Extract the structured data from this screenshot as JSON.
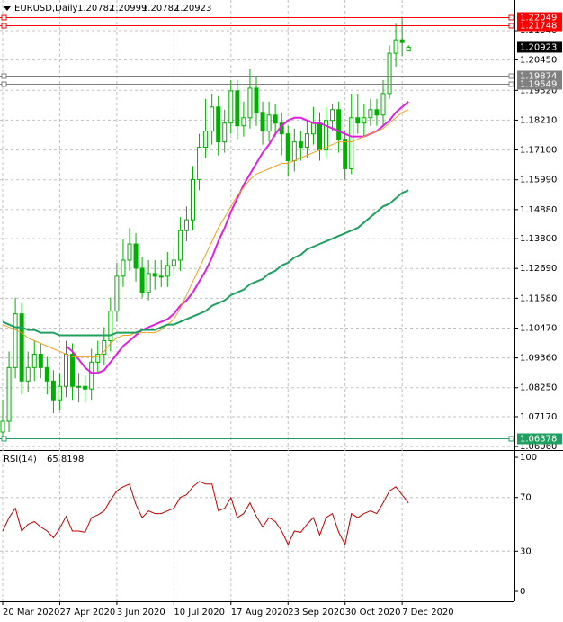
{
  "chart_data": {
    "type": "candlestick",
    "title": "EURUSD,Daily",
    "categories": [
      "20 Mar 2020",
      null,
      null,
      null,
      null,
      null,
      null,
      null,
      null,
      "27 Apr 2020",
      null,
      null,
      null,
      null,
      null,
      null,
      null,
      null,
      "3 Jun 2020",
      null,
      null,
      null,
      null,
      null,
      null,
      null,
      null,
      "10 Jul 2020",
      null,
      null,
      null,
      null,
      null,
      null,
      null,
      null,
      "17 Aug 2020",
      null,
      null,
      null,
      null,
      null,
      null,
      null,
      null,
      "23 Sep 2020",
      null,
      null,
      null,
      null,
      null,
      null,
      null,
      null,
      "30 Oct 2020",
      null,
      null,
      null,
      null,
      null,
      null,
      null,
      null,
      "7 Dec 2020",
      null
    ],
    "open": [
      1.066,
      1.07,
      1.09,
      1.11,
      1.085,
      1.09,
      1.095,
      1.09,
      1.085,
      1.078,
      1.083,
      1.095,
      1.083,
      1.083,
      1.082,
      1.092,
      1.095,
      1.1,
      1.111,
      1.124,
      1.13,
      1.136,
      1.127,
      1.118,
      1.125,
      1.124,
      1.124,
      1.128,
      1.13,
      1.141,
      1.145,
      1.16,
      1.172,
      1.178,
      1.187,
      1.174,
      1.181,
      1.193,
      1.18,
      1.183,
      1.194,
      1.185,
      1.178,
      1.184,
      1.181,
      1.177,
      1.167,
      1.174,
      1.172,
      1.177,
      1.181,
      1.171,
      1.182,
      1.186,
      1.175,
      1.164,
      1.183,
      1.181,
      1.183,
      1.186,
      1.184,
      1.192,
      1.207,
      1.212,
      1.20782
    ],
    "high": [
      1.078,
      1.096,
      1.116,
      1.114,
      1.096,
      1.1,
      1.099,
      1.094,
      1.089,
      1.088,
      1.1,
      1.099,
      1.088,
      1.087,
      1.097,
      1.1,
      1.105,
      1.116,
      1.129,
      1.138,
      1.142,
      1.14,
      1.131,
      1.13,
      1.13,
      1.13,
      1.133,
      1.135,
      1.146,
      1.15,
      1.165,
      1.177,
      1.19,
      1.192,
      1.191,
      1.186,
      1.197,
      1.197,
      1.189,
      1.201,
      1.198,
      1.189,
      1.189,
      1.188,
      1.185,
      1.18,
      1.179,
      1.178,
      1.182,
      1.187,
      1.185,
      1.187,
      1.188,
      1.189,
      1.178,
      1.192,
      1.192,
      1.188,
      1.19,
      1.19,
      1.197,
      1.21,
      1.218,
      1.22,
      1.20999
    ],
    "low": [
      1.063,
      1.066,
      1.086,
      1.08,
      1.081,
      1.085,
      1.086,
      1.08,
      1.073,
      1.074,
      1.079,
      1.078,
      1.077,
      1.077,
      1.078,
      1.088,
      1.091,
      1.096,
      1.107,
      1.12,
      1.126,
      1.122,
      1.116,
      1.115,
      1.119,
      1.12,
      1.12,
      1.124,
      1.126,
      1.137,
      1.141,
      1.156,
      1.168,
      1.173,
      1.169,
      1.17,
      1.177,
      1.175,
      1.176,
      1.179,
      1.18,
      1.173,
      1.174,
      1.176,
      1.169,
      1.161,
      1.163,
      1.167,
      1.168,
      1.173,
      1.167,
      1.168,
      1.178,
      1.17,
      1.16,
      1.162,
      1.177,
      1.176,
      1.18,
      1.18,
      1.18,
      1.19,
      1.202,
      1.206,
      1.20782
    ],
    "close": [
      1.07,
      1.09,
      1.11,
      1.085,
      1.09,
      1.095,
      1.09,
      1.085,
      1.078,
      1.083,
      1.095,
      1.083,
      1.083,
      1.082,
      1.092,
      1.095,
      1.1,
      1.111,
      1.124,
      1.13,
      1.136,
      1.127,
      1.118,
      1.125,
      1.124,
      1.124,
      1.128,
      1.13,
      1.141,
      1.145,
      1.16,
      1.172,
      1.178,
      1.187,
      1.174,
      1.181,
      1.193,
      1.18,
      1.183,
      1.194,
      1.185,
      1.178,
      1.184,
      1.181,
      1.177,
      1.167,
      1.174,
      1.172,
      1.177,
      1.181,
      1.171,
      1.182,
      1.186,
      1.175,
      1.164,
      1.183,
      1.181,
      1.183,
      1.186,
      1.184,
      1.192,
      1.207,
      1.212,
      1.211,
      1.20923
    ],
    "up_color": "#00b000",
    "down_color": "#00b000",
    "ylim": [
      1.0593,
      1.2268
    ],
    "yticks": [
      {
        "value": 1.2154,
        "label": "1.21540"
      },
      {
        "value": 1.2045,
        "label": "1.20450"
      },
      {
        "value": 1.1932,
        "label": "1.19320"
      },
      {
        "value": 1.1821,
        "label": "1.18210"
      },
      {
        "value": 1.171,
        "label": "1.17100"
      },
      {
        "value": 1.1599,
        "label": "1.15990"
      },
      {
        "value": 1.1488,
        "label": "1.14880"
      },
      {
        "value": 1.138,
        "label": "1.13800"
      },
      {
        "value": 1.1269,
        "label": "1.12690"
      },
      {
        "value": 1.1158,
        "label": "1.11580"
      },
      {
        "value": 1.1047,
        "label": "1.10470"
      },
      {
        "value": 1.0936,
        "label": "1.09360"
      },
      {
        "value": 1.0825,
        "label": "1.08250"
      },
      {
        "value": 1.0717,
        "label": "1.07170"
      },
      {
        "value": 1.0606,
        "label": "1.06060"
      }
    ],
    "grid": true,
    "moving_averages": [
      {
        "color": "#e020e0",
        "values": [
          null,
          null,
          null,
          null,
          null,
          null,
          null,
          null,
          null,
          null,
          1.098,
          1.096,
          1.093,
          1.09,
          1.088,
          1.088,
          1.089,
          1.092,
          1.095,
          1.098,
          1.1,
          1.102,
          1.104,
          1.105,
          1.106,
          1.107,
          1.108,
          1.11,
          1.113,
          1.115,
          1.118,
          1.122,
          1.126,
          1.131,
          1.137,
          1.142,
          1.148,
          1.153,
          1.158,
          1.162,
          1.166,
          1.17,
          1.173,
          1.177,
          1.18,
          1.182,
          1.183,
          1.183,
          1.182,
          1.181,
          1.181,
          1.18,
          1.179,
          1.178,
          1.177,
          1.176,
          1.176,
          1.176,
          1.177,
          1.178,
          1.18,
          1.182,
          1.185,
          1.187,
          1.189
        ]
      },
      {
        "color": "#f0a020",
        "values": [
          1.106,
          1.105,
          1.104,
          1.103,
          1.101,
          1.1,
          1.099,
          1.098,
          1.097,
          1.096,
          1.095,
          1.094,
          1.094,
          1.094,
          1.094,
          1.094,
          1.096,
          1.099,
          1.101,
          1.102,
          1.102,
          1.103,
          1.103,
          1.103,
          1.103,
          1.104,
          1.106,
          1.108,
          1.112,
          1.117,
          1.122,
          1.127,
          1.132,
          1.137,
          1.142,
          1.146,
          1.15,
          1.154,
          1.157,
          1.16,
          1.162,
          1.163,
          1.164,
          1.165,
          1.166,
          1.166,
          1.167,
          1.168,
          1.169,
          1.17,
          1.171,
          1.172,
          1.173,
          1.174,
          1.174,
          1.174,
          1.175,
          1.176,
          1.177,
          1.178,
          1.179,
          1.181,
          1.183,
          1.185,
          1.186
        ]
      },
      {
        "color": "#20a060",
        "values": [
          1.107,
          1.106,
          1.105,
          1.105,
          1.104,
          1.104,
          1.103,
          1.103,
          1.103,
          1.102,
          1.102,
          1.102,
          1.102,
          1.102,
          1.102,
          1.102,
          1.102,
          1.102,
          1.103,
          1.103,
          1.103,
          1.103,
          1.104,
          1.104,
          1.104,
          1.105,
          1.106,
          1.106,
          1.107,
          1.108,
          1.109,
          1.11,
          1.111,
          1.113,
          1.114,
          1.115,
          1.117,
          1.118,
          1.119,
          1.121,
          1.122,
          1.123,
          1.125,
          1.126,
          1.128,
          1.129,
          1.131,
          1.132,
          1.134,
          1.135,
          1.136,
          1.137,
          1.138,
          1.139,
          1.14,
          1.141,
          1.142,
          1.144,
          1.146,
          1.148,
          1.15,
          1.151,
          1.153,
          1.155,
          1.156
        ]
      }
    ],
    "levels": [
      {
        "value": 1.22049,
        "color": "#ff0000"
      },
      {
        "value": 1.21748,
        "color": "#ff0000"
      },
      {
        "value": 1.19874,
        "color": "#808080"
      },
      {
        "value": 1.19549,
        "color": "#808080"
      },
      {
        "value": 1.06378,
        "color": "#20a060"
      }
    ],
    "indicator": {
      "name": "RSI(14)",
      "color": "#c00000",
      "values": [
        45,
        55,
        62,
        45,
        50,
        52,
        48,
        45,
        40,
        47,
        56,
        45,
        45,
        44,
        55,
        57,
        60,
        68,
        75,
        78,
        80,
        65,
        55,
        60,
        58,
        58,
        60,
        62,
        70,
        72,
        78,
        82,
        80,
        80,
        60,
        62,
        70,
        55,
        58,
        66,
        56,
        48,
        55,
        52,
        45,
        35,
        45,
        44,
        50,
        55,
        42,
        55,
        58,
        44,
        35,
        58,
        55,
        58,
        60,
        58,
        66,
        75,
        78,
        72,
        65.8198
      ],
      "ylim": [
        -7.4,
        105.4
      ],
      "yticks": [
        100,
        70,
        30,
        0
      ],
      "levels": [
        70,
        30
      ]
    }
  }
}
